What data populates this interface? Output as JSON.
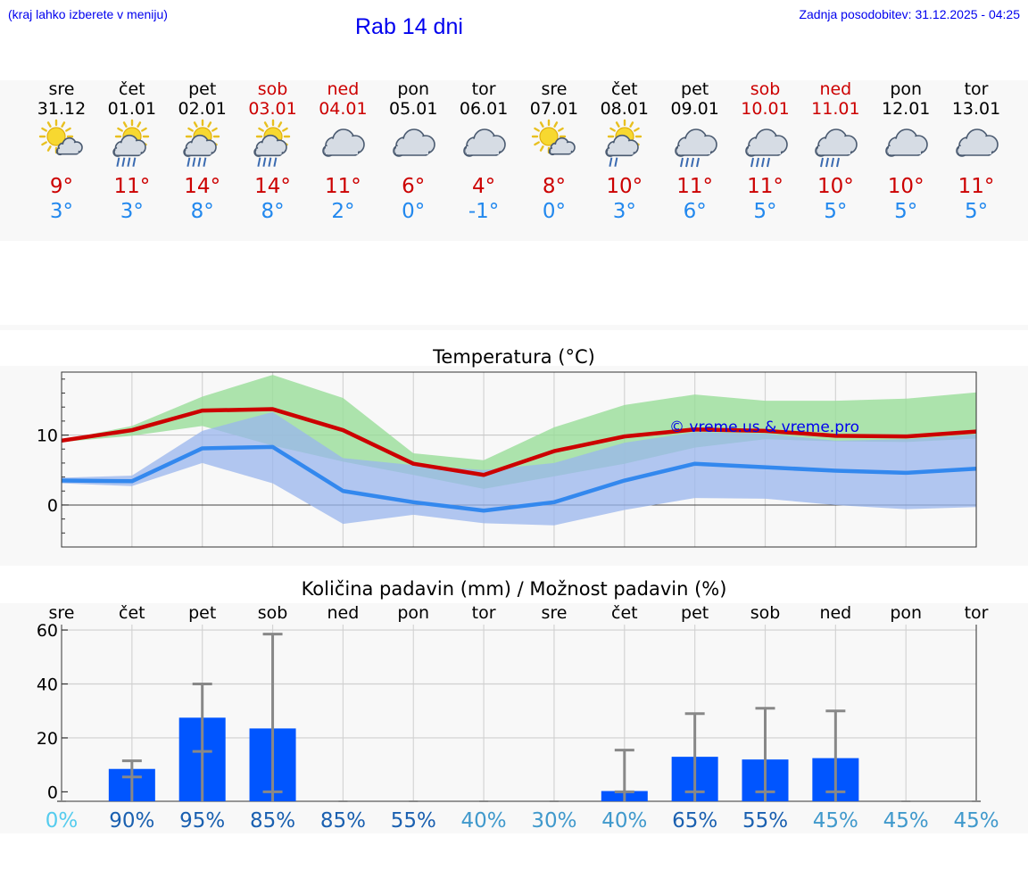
{
  "header": {
    "hint": "(kraj lahko izberete v meniju)",
    "title": "Rab 14 dni",
    "updated": "Zadnja posodobitev: 31.12.2025 - 04:25"
  },
  "colors": {
    "max": "#cc0000",
    "min": "#2288ee",
    "max_band": "#99dd99",
    "min_band": "#99b5ee",
    "bar": "#0055ff",
    "error": "#888888"
  },
  "days": [
    {
      "name": "sre",
      "date": "31.12",
      "icon": "sun-cloud-icon",
      "max": "9°",
      "min": "3°",
      "weekend": false,
      "prob": "0%"
    },
    {
      "name": "čet",
      "date": "01.01",
      "icon": "sun-rain-icon",
      "max": "11°",
      "min": "3°",
      "weekend": false,
      "prob": "90%"
    },
    {
      "name": "pet",
      "date": "02.01",
      "icon": "sun-rain-icon",
      "max": "14°",
      "min": "8°",
      "weekend": false,
      "prob": "95%"
    },
    {
      "name": "sob",
      "date": "03.01",
      "icon": "sun-rain-icon",
      "max": "14°",
      "min": "8°",
      "weekend": true,
      "prob": "85%"
    },
    {
      "name": "ned",
      "date": "04.01",
      "icon": "cloud-icon",
      "max": "11°",
      "min": "2°",
      "weekend": true,
      "prob": "85%"
    },
    {
      "name": "pon",
      "date": "05.01",
      "icon": "cloud-icon",
      "max": "6°",
      "min": "0°",
      "weekend": false,
      "prob": "55%"
    },
    {
      "name": "tor",
      "date": "06.01",
      "icon": "cloud-icon",
      "max": "4°",
      "min": "-1°",
      "weekend": false,
      "prob": "40%"
    },
    {
      "name": "sre",
      "date": "07.01",
      "icon": "sun-cloud-icon",
      "max": "8°",
      "min": "0°",
      "weekend": false,
      "prob": "30%"
    },
    {
      "name": "čet",
      "date": "08.01",
      "icon": "sun-drizzle-icon",
      "max": "10°",
      "min": "3°",
      "weekend": false,
      "prob": "40%"
    },
    {
      "name": "pet",
      "date": "09.01",
      "icon": "cloud-rain-icon",
      "max": "11°",
      "min": "6°",
      "weekend": false,
      "prob": "65%"
    },
    {
      "name": "sob",
      "date": "10.01",
      "icon": "cloud-rain-icon",
      "max": "11°",
      "min": "5°",
      "weekend": true,
      "prob": "55%"
    },
    {
      "name": "ned",
      "date": "11.01",
      "icon": "cloud-rain-icon",
      "max": "10°",
      "min": "5°",
      "weekend": true,
      "prob": "45%"
    },
    {
      "name": "pon",
      "date": "12.01",
      "icon": "cloud-icon",
      "max": "10°",
      "min": "5°",
      "weekend": false,
      "prob": "45%"
    },
    {
      "name": "tor",
      "date": "13.01",
      "icon": "cloud-icon",
      "max": "11°",
      "min": "5°",
      "weekend": false,
      "prob": "45%"
    }
  ],
  "chart_data": [
    {
      "type": "line",
      "title": "Temperatura (°C)",
      "watermark": "© vreme.us & vreme.pro",
      "x": [
        0,
        1,
        2,
        3,
        4,
        5,
        6,
        7,
        8,
        9,
        10,
        11,
        12,
        13
      ],
      "ylim": [
        -6,
        19
      ],
      "yticks": [
        0,
        10
      ],
      "series": [
        {
          "name": "max",
          "values": [
            9.2,
            10.7,
            13.5,
            13.7,
            10.7,
            5.9,
            4.3,
            7.7,
            9.8,
            10.8,
            10.6,
            9.9,
            9.8,
            10.5
          ]
        },
        {
          "name": "min",
          "values": [
            3.5,
            3.4,
            8.1,
            8.3,
            2.0,
            0.4,
            -0.8,
            0.4,
            3.5,
            5.9,
            5.4,
            4.9,
            4.6,
            5.2
          ]
        }
      ],
      "bands": [
        {
          "name": "max-range",
          "upper": [
            9.3,
            11.3,
            15.5,
            18.6,
            15.3,
            7.4,
            6.4,
            11.1,
            14.3,
            15.8,
            14.9,
            14.9,
            15.2,
            16.1
          ],
          "lower": [
            9.0,
            9.9,
            11.3,
            8.5,
            6.2,
            4.3,
            2.3,
            4.1,
            5.9,
            8.2,
            9.4,
            9.1,
            9.0,
            9.5
          ]
        },
        {
          "name": "min-range",
          "upper": [
            3.9,
            4.2,
            10.6,
            13.3,
            6.7,
            5.7,
            5.0,
            6.0,
            8.9,
            10.4,
            10.2,
            9.2,
            9.4,
            10.1
          ],
          "lower": [
            3.1,
            2.7,
            6.0,
            3.1,
            -2.7,
            -1.4,
            -2.6,
            -2.9,
            -0.7,
            1.0,
            0.9,
            0.0,
            -0.6,
            -0.3
          ]
        }
      ]
    },
    {
      "type": "bar",
      "title": "Količina padavin (mm) / Možnost padavin (%)",
      "x": [
        0,
        1,
        2,
        3,
        4,
        5,
        6,
        7,
        8,
        9,
        10,
        11,
        12,
        13
      ],
      "ylim": [
        -3.5,
        62
      ],
      "yticks": [
        0,
        20,
        40,
        60
      ],
      "values": [
        0,
        8.5,
        27.5,
        23.5,
        0,
        0,
        0,
        0,
        0.3,
        13,
        12,
        12.5,
        0,
        0
      ],
      "error_low": [
        0,
        5.5,
        15,
        0,
        0,
        0,
        0,
        0,
        0,
        0,
        0,
        0,
        0,
        0
      ],
      "error_high": [
        0,
        11.5,
        40,
        58.5,
        0,
        0,
        0,
        0,
        15.5,
        29,
        31,
        30,
        0,
        0
      ],
      "day_labels": [
        "sre",
        "čet",
        "pet",
        "sob",
        "ned",
        "pon",
        "tor",
        "sre",
        "čet",
        "pet",
        "sob",
        "ned",
        "pon",
        "tor"
      ],
      "probabilities": [
        "0%",
        "90%",
        "95%",
        "85%",
        "85%",
        "55%",
        "40%",
        "30%",
        "40%",
        "65%",
        "55%",
        "45%",
        "45%",
        "45%"
      ],
      "probability_colors": [
        "#55ccee",
        "#1a60b0",
        "#1a60b0",
        "#1a60b0",
        "#1a60b0",
        "#1a60b0",
        "#4099cc",
        "#4099cc",
        "#4099cc",
        "#1a60b0",
        "#1a60b0",
        "#4099cc",
        "#4099cc",
        "#4099cc"
      ]
    }
  ]
}
